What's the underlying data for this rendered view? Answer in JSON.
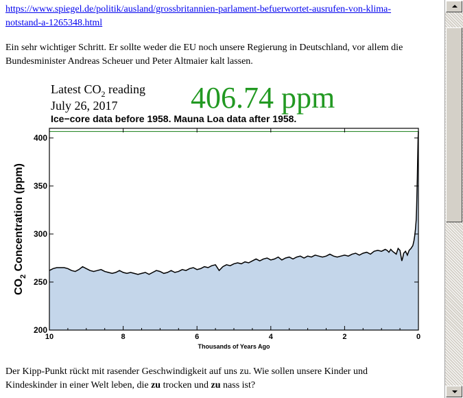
{
  "article": {
    "link_line1": "https://www.spiegel.de/politik/ausland/grossbritannien-parlament-befuerwortet-ausrufen-von-klima-",
    "link_line2": "notstand-a-1265348.html",
    "para1_line1": "Ein sehr wichtiger Schritt. Er sollte weder die EU noch unsere Regierung in Deutschland, vor allem die",
    "para1_line2": "Bundesminister Andreas Scheuer und Peter Altmaier kalt lassen.",
    "para2_line1": "Der Kipp-Punkt rückt mit rasender Geschwindigkeit auf uns zu. Wie sollen unsere Kinder und",
    "para2_pre": "Kindeskinder in einer Welt leben, die ",
    "para2_b1": "zu",
    "para2_mid": " trocken und ",
    "para2_b2": "zu",
    "para2_post": " nass ist?"
  },
  "chart_data": {
    "type": "area",
    "header": {
      "reading_label_pre": "Latest CO",
      "reading_label_sub": "2",
      "reading_label_post": " reading",
      "date": "July 26, 2017",
      "reading_value": "406.74 ppm",
      "title": "Ice−core data before 1958. Mauna Loa data after 1958."
    },
    "xlabel": "Thousands of Years Ago",
    "ylabel_pre": "CO",
    "ylabel_sub": "2",
    "ylabel_post": " Concentration (ppm)",
    "xlim": [
      10,
      0
    ],
    "ylim": [
      200,
      410
    ],
    "x_ticks": [
      "10",
      "8",
      "6",
      "4",
      "2",
      "0"
    ],
    "x_tick_values": [
      10,
      8,
      6,
      4,
      2,
      0
    ],
    "y_ticks": [
      "200",
      "250",
      "300",
      "350",
      "400"
    ],
    "y_tick_values": [
      200,
      250,
      300,
      350,
      400
    ],
    "reference_line": 406.74,
    "reference_color": "#2e8b2e",
    "fill_color": "#c4d6ea",
    "line_color": "#000000",
    "series": [
      {
        "values": [
          [
            10,
            262
          ],
          [
            9.9,
            264
          ],
          [
            9.8,
            265
          ],
          [
            9.6,
            265
          ],
          [
            9.5,
            264
          ],
          [
            9.4,
            262
          ],
          [
            9.3,
            261
          ],
          [
            9.2,
            263
          ],
          [
            9.1,
            266
          ],
          [
            9.0,
            264
          ],
          [
            8.9,
            262
          ],
          [
            8.8,
            261
          ],
          [
            8.7,
            262
          ],
          [
            8.6,
            263
          ],
          [
            8.5,
            261
          ],
          [
            8.4,
            260
          ],
          [
            8.3,
            259
          ],
          [
            8.2,
            260
          ],
          [
            8.1,
            262
          ],
          [
            8.0,
            260
          ],
          [
            7.9,
            259
          ],
          [
            7.8,
            260
          ],
          [
            7.7,
            259
          ],
          [
            7.6,
            258
          ],
          [
            7.5,
            259
          ],
          [
            7.4,
            260
          ],
          [
            7.3,
            258
          ],
          [
            7.2,
            260
          ],
          [
            7.1,
            262
          ],
          [
            7.0,
            261
          ],
          [
            6.9,
            259
          ],
          [
            6.8,
            260
          ],
          [
            6.7,
            262
          ],
          [
            6.6,
            260
          ],
          [
            6.5,
            261
          ],
          [
            6.4,
            263
          ],
          [
            6.3,
            262
          ],
          [
            6.2,
            264
          ],
          [
            6.1,
            265
          ],
          [
            6.0,
            263
          ],
          [
            5.9,
            264
          ],
          [
            5.8,
            266
          ],
          [
            5.7,
            265
          ],
          [
            5.6,
            267
          ],
          [
            5.5,
            268
          ],
          [
            5.4,
            262
          ],
          [
            5.3,
            266
          ],
          [
            5.2,
            268
          ],
          [
            5.1,
            267
          ],
          [
            5.0,
            269
          ],
          [
            4.9,
            270
          ],
          [
            4.8,
            269
          ],
          [
            4.7,
            271
          ],
          [
            4.6,
            270
          ],
          [
            4.5,
            272
          ],
          [
            4.4,
            274
          ],
          [
            4.3,
            272
          ],
          [
            4.2,
            274
          ],
          [
            4.1,
            275
          ],
          [
            4.0,
            273
          ],
          [
            3.9,
            274
          ],
          [
            3.8,
            276
          ],
          [
            3.7,
            273
          ],
          [
            3.6,
            275
          ],
          [
            3.5,
            276
          ],
          [
            3.4,
            274
          ],
          [
            3.3,
            276
          ],
          [
            3.2,
            277
          ],
          [
            3.1,
            275
          ],
          [
            3.0,
            277
          ],
          [
            2.9,
            276
          ],
          [
            2.8,
            278
          ],
          [
            2.7,
            277
          ],
          [
            2.6,
            276
          ],
          [
            2.5,
            277
          ],
          [
            2.4,
            279
          ],
          [
            2.3,
            277
          ],
          [
            2.2,
            276
          ],
          [
            2.1,
            277
          ],
          [
            2.0,
            278
          ],
          [
            1.9,
            277
          ],
          [
            1.8,
            279
          ],
          [
            1.7,
            280
          ],
          [
            1.6,
            278
          ],
          [
            1.5,
            280
          ],
          [
            1.4,
            281
          ],
          [
            1.3,
            279
          ],
          [
            1.2,
            282
          ],
          [
            1.1,
            283
          ],
          [
            1.0,
            282
          ],
          [
            0.9,
            284
          ],
          [
            0.85,
            283
          ],
          [
            0.8,
            281
          ],
          [
            0.75,
            284
          ],
          [
            0.7,
            282
          ],
          [
            0.6,
            279
          ],
          [
            0.55,
            285
          ],
          [
            0.5,
            283
          ],
          [
            0.45,
            272
          ],
          [
            0.42,
            276
          ],
          [
            0.4,
            280
          ],
          [
            0.35,
            282
          ],
          [
            0.3,
            278
          ],
          [
            0.25,
            283
          ],
          [
            0.2,
            285
          ],
          [
            0.15,
            288
          ],
          [
            0.12,
            293
          ],
          [
            0.1,
            298
          ],
          [
            0.08,
            305
          ],
          [
            0.06,
            315
          ],
          [
            0.05,
            325
          ],
          [
            0.04,
            340
          ],
          [
            0.03,
            358
          ],
          [
            0.02,
            378
          ],
          [
            0.01,
            400
          ],
          [
            0.0,
            406.74
          ]
        ]
      }
    ]
  }
}
